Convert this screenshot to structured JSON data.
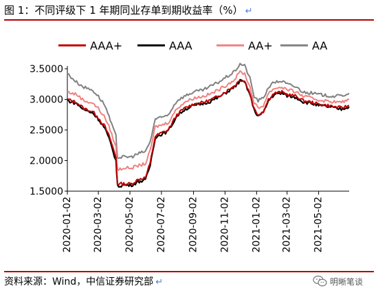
{
  "title": "图 1：不同评级下 1 年期同业存单到期收益率（%）",
  "source": "资料来源：Wind，中信证券研究部",
  "watermark": "明晰笔谈",
  "chart_data": {
    "type": "line",
    "title": "图 1：不同评级下 1 年期同业存单到期收益率（%）",
    "xlabel": "",
    "ylabel": "",
    "ylim": [
      1.5,
      3.5
    ],
    "yticks": [
      "1.5000",
      "2.0000",
      "2.5000",
      "3.0000",
      "3.5000"
    ],
    "xticks": [
      "2020-01-02",
      "2020-03-02",
      "2020-05-02",
      "2020-07-02",
      "2020-09-02",
      "2020-11-02",
      "2021-01-02",
      "2021-03-02",
      "2021-05-02"
    ],
    "x_range": [
      "2020-01-02",
      "2021-06-30"
    ],
    "grid": false,
    "legend_position": "top",
    "series": [
      {
        "name": "AAA+",
        "color": "#c00000",
        "points": [
          [
            "2020-01-02",
            3.0
          ],
          [
            "2020-01-20",
            2.95
          ],
          [
            "2020-02-03",
            2.85
          ],
          [
            "2020-02-20",
            2.8
          ],
          [
            "2020-03-02",
            2.7
          ],
          [
            "2020-03-15",
            2.55
          ],
          [
            "2020-03-25",
            2.35
          ],
          [
            "2020-04-05",
            2.05
          ],
          [
            "2020-04-08",
            1.62
          ],
          [
            "2020-04-20",
            1.62
          ],
          [
            "2020-05-05",
            1.62
          ],
          [
            "2020-05-20",
            1.7
          ],
          [
            "2020-06-01",
            1.72
          ],
          [
            "2020-06-10",
            1.95
          ],
          [
            "2020-06-20",
            2.4
          ],
          [
            "2020-07-02",
            2.45
          ],
          [
            "2020-07-15",
            2.5
          ],
          [
            "2020-08-01",
            2.75
          ],
          [
            "2020-08-15",
            2.85
          ],
          [
            "2020-09-02",
            2.92
          ],
          [
            "2020-09-20",
            2.95
          ],
          [
            "2020-10-02",
            2.98
          ],
          [
            "2020-10-20",
            3.05
          ],
          [
            "2020-11-02",
            3.12
          ],
          [
            "2020-11-20",
            3.22
          ],
          [
            "2020-12-01",
            3.32
          ],
          [
            "2020-12-10",
            3.3
          ],
          [
            "2020-12-20",
            3.1
          ],
          [
            "2020-12-28",
            2.85
          ],
          [
            "2021-01-05",
            2.75
          ],
          [
            "2021-01-15",
            2.8
          ],
          [
            "2021-01-25",
            3.0
          ],
          [
            "2021-02-05",
            3.1
          ],
          [
            "2021-02-20",
            3.12
          ],
          [
            "2021-03-02",
            3.08
          ],
          [
            "2021-03-20",
            3.05
          ],
          [
            "2021-04-02",
            2.98
          ],
          [
            "2021-04-20",
            2.95
          ],
          [
            "2021-05-02",
            2.92
          ],
          [
            "2021-05-20",
            2.9
          ],
          [
            "2021-06-01",
            2.88
          ],
          [
            "2021-06-15",
            2.86
          ],
          [
            "2021-06-30",
            2.9
          ]
        ]
      },
      {
        "name": "AAA",
        "color": "#000000",
        "points": [
          [
            "2020-01-02",
            2.98
          ],
          [
            "2020-01-20",
            2.93
          ],
          [
            "2020-02-03",
            2.83
          ],
          [
            "2020-02-20",
            2.78
          ],
          [
            "2020-03-02",
            2.68
          ],
          [
            "2020-03-15",
            2.52
          ],
          [
            "2020-03-25",
            2.3
          ],
          [
            "2020-04-05",
            2.0
          ],
          [
            "2020-04-08",
            1.58
          ],
          [
            "2020-04-20",
            1.6
          ],
          [
            "2020-05-05",
            1.6
          ],
          [
            "2020-05-20",
            1.66
          ],
          [
            "2020-06-01",
            1.68
          ],
          [
            "2020-06-10",
            1.92
          ],
          [
            "2020-06-20",
            2.38
          ],
          [
            "2020-07-02",
            2.43
          ],
          [
            "2020-07-15",
            2.48
          ],
          [
            "2020-08-01",
            2.73
          ],
          [
            "2020-08-15",
            2.83
          ],
          [
            "2020-09-02",
            2.9
          ],
          [
            "2020-09-20",
            2.93
          ],
          [
            "2020-10-02",
            2.96
          ],
          [
            "2020-10-20",
            3.03
          ],
          [
            "2020-11-02",
            3.1
          ],
          [
            "2020-11-20",
            3.2
          ],
          [
            "2020-12-01",
            3.3
          ],
          [
            "2020-12-10",
            3.28
          ],
          [
            "2020-12-20",
            3.08
          ],
          [
            "2020-12-28",
            2.83
          ],
          [
            "2021-01-05",
            2.73
          ],
          [
            "2021-01-15",
            2.78
          ],
          [
            "2021-01-25",
            2.98
          ],
          [
            "2021-02-05",
            3.08
          ],
          [
            "2021-02-20",
            3.1
          ],
          [
            "2021-03-02",
            3.06
          ],
          [
            "2021-03-20",
            3.03
          ],
          [
            "2021-04-02",
            2.96
          ],
          [
            "2021-04-20",
            2.93
          ],
          [
            "2021-05-02",
            2.9
          ],
          [
            "2021-05-20",
            2.88
          ],
          [
            "2021-06-01",
            2.86
          ],
          [
            "2021-06-15",
            2.84
          ],
          [
            "2021-06-30",
            2.88
          ]
        ]
      },
      {
        "name": "AA+",
        "color": "#f08080",
        "points": [
          [
            "2020-01-02",
            3.12
          ],
          [
            "2020-01-20",
            3.08
          ],
          [
            "2020-02-03",
            2.98
          ],
          [
            "2020-02-20",
            2.94
          ],
          [
            "2020-03-02",
            2.85
          ],
          [
            "2020-03-15",
            2.7
          ],
          [
            "2020-03-25",
            2.5
          ],
          [
            "2020-04-05",
            2.22
          ],
          [
            "2020-04-08",
            1.85
          ],
          [
            "2020-04-20",
            1.88
          ],
          [
            "2020-05-05",
            1.88
          ],
          [
            "2020-05-20",
            1.92
          ],
          [
            "2020-06-01",
            1.95
          ],
          [
            "2020-06-10",
            2.15
          ],
          [
            "2020-06-20",
            2.55
          ],
          [
            "2020-07-02",
            2.58
          ],
          [
            "2020-07-15",
            2.62
          ],
          [
            "2020-08-01",
            2.85
          ],
          [
            "2020-08-15",
            2.95
          ],
          [
            "2020-09-02",
            3.02
          ],
          [
            "2020-09-20",
            3.05
          ],
          [
            "2020-10-02",
            3.08
          ],
          [
            "2020-10-20",
            3.15
          ],
          [
            "2020-11-02",
            3.22
          ],
          [
            "2020-11-20",
            3.32
          ],
          [
            "2020-12-01",
            3.45
          ],
          [
            "2020-12-10",
            3.42
          ],
          [
            "2020-12-20",
            3.2
          ],
          [
            "2020-12-28",
            2.95
          ],
          [
            "2021-01-05",
            2.85
          ],
          [
            "2021-01-15",
            2.9
          ],
          [
            "2021-01-25",
            3.1
          ],
          [
            "2021-02-05",
            3.18
          ],
          [
            "2021-02-20",
            3.2
          ],
          [
            "2021-03-02",
            3.16
          ],
          [
            "2021-03-20",
            3.12
          ],
          [
            "2021-04-02",
            3.05
          ],
          [
            "2021-04-20",
            3.02
          ],
          [
            "2021-05-02",
            2.99
          ],
          [
            "2021-05-20",
            2.97
          ],
          [
            "2021-06-01",
            2.96
          ],
          [
            "2021-06-15",
            2.95
          ],
          [
            "2021-06-30",
            3.0
          ]
        ]
      },
      {
        "name": "AA",
        "color": "#808080",
        "points": [
          [
            "2020-01-02",
            3.42
          ],
          [
            "2020-01-20",
            3.28
          ],
          [
            "2020-02-03",
            3.2
          ],
          [
            "2020-02-20",
            3.15
          ],
          [
            "2020-03-02",
            3.05
          ],
          [
            "2020-03-15",
            2.9
          ],
          [
            "2020-03-25",
            2.65
          ],
          [
            "2020-04-05",
            2.4
          ],
          [
            "2020-04-08",
            2.05
          ],
          [
            "2020-04-20",
            2.06
          ],
          [
            "2020-05-05",
            2.06
          ],
          [
            "2020-05-20",
            2.12
          ],
          [
            "2020-06-01",
            2.15
          ],
          [
            "2020-06-10",
            2.3
          ],
          [
            "2020-06-20",
            2.68
          ],
          [
            "2020-07-02",
            2.7
          ],
          [
            "2020-07-15",
            2.75
          ],
          [
            "2020-08-01",
            2.98
          ],
          [
            "2020-08-15",
            3.05
          ],
          [
            "2020-09-02",
            3.12
          ],
          [
            "2020-09-20",
            3.15
          ],
          [
            "2020-10-02",
            3.2
          ],
          [
            "2020-10-20",
            3.28
          ],
          [
            "2020-11-02",
            3.35
          ],
          [
            "2020-11-20",
            3.45
          ],
          [
            "2020-12-01",
            3.58
          ],
          [
            "2020-12-10",
            3.55
          ],
          [
            "2020-12-20",
            3.35
          ],
          [
            "2020-12-28",
            3.05
          ],
          [
            "2021-01-05",
            2.98
          ],
          [
            "2021-01-15",
            3.02
          ],
          [
            "2021-01-25",
            3.2
          ],
          [
            "2021-02-05",
            3.28
          ],
          [
            "2021-02-20",
            3.3
          ],
          [
            "2021-03-02",
            3.25
          ],
          [
            "2021-03-20",
            3.2
          ],
          [
            "2021-04-02",
            3.12
          ],
          [
            "2021-04-20",
            3.1
          ],
          [
            "2021-05-02",
            3.08
          ],
          [
            "2021-05-20",
            3.06
          ],
          [
            "2021-06-01",
            3.05
          ],
          [
            "2021-06-15",
            3.06
          ],
          [
            "2021-06-30",
            3.1
          ]
        ]
      }
    ]
  }
}
